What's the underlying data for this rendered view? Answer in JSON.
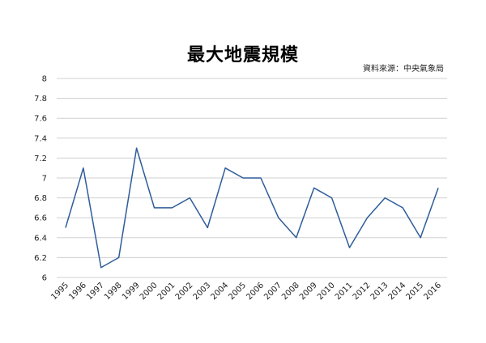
{
  "chart_data": {
    "type": "line",
    "title": "最大地震規模",
    "source": "資料來源：中央氣象局",
    "xlabel": "",
    "ylabel": "",
    "ylim": [
      6,
      8
    ],
    "ytick_step": 0.2,
    "yticks": [
      "6",
      "6.2",
      "6.4",
      "6.6",
      "6.8",
      "7",
      "7.2",
      "7.4",
      "7.6",
      "7.8",
      "8"
    ],
    "grid": true,
    "legend": "none",
    "line_color": "#2e5c9a",
    "grid_color": "#d0d0d0",
    "categories": [
      "1995",
      "1996",
      "1997",
      "1998",
      "1999",
      "2000",
      "2001",
      "2002",
      "2003",
      "2004",
      "2005",
      "2006",
      "2007",
      "2008",
      "2009",
      "2010",
      "2011",
      "2012",
      "2013",
      "2014",
      "2015",
      "2016"
    ],
    "series": [
      {
        "values": [
          6.5,
          7.1,
          6.1,
          6.2,
          7.3,
          6.7,
          6.7,
          6.8,
          6.5,
          7.1,
          7.0,
          7.0,
          6.6,
          6.4,
          6.9,
          6.8,
          6.3,
          6.6,
          6.8,
          6.7,
          6.4,
          6.9
        ]
      }
    ]
  }
}
